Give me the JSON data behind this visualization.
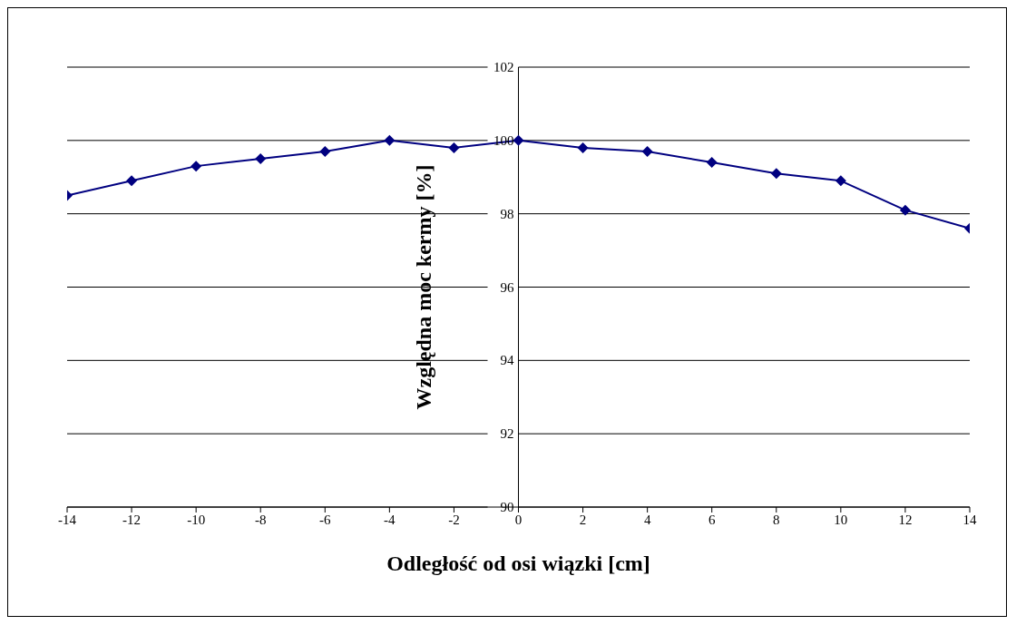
{
  "chart_data": {
    "type": "line",
    "xlabel": "Odległość od osi wiązki [cm]",
    "ylabel": "Względna moc kermy [%]",
    "x": [
      -14,
      -12,
      -10,
      -8,
      -6,
      -4,
      -2,
      0,
      2,
      4,
      6,
      8,
      10,
      12,
      14
    ],
    "series": [
      {
        "color": "#000080",
        "values": [
          98.5,
          98.9,
          99.3,
          99.5,
          99.7,
          100,
          99.8,
          100,
          99.8,
          99.7,
          99.4,
          99.1,
          98.9,
          98.1,
          97.6
        ]
      }
    ],
    "xlim": [
      -14,
      14
    ],
    "xticks": [
      -14,
      -12,
      -10,
      -8,
      -6,
      -4,
      -2,
      0,
      2,
      4,
      6,
      8,
      10,
      12,
      14
    ],
    "ylim": [
      90,
      102
    ],
    "yticks": [
      90,
      92,
      94,
      96,
      98,
      100,
      102
    ],
    "grid": "y",
    "marker": "diamond",
    "line_style": "solid",
    "legend": false
  }
}
